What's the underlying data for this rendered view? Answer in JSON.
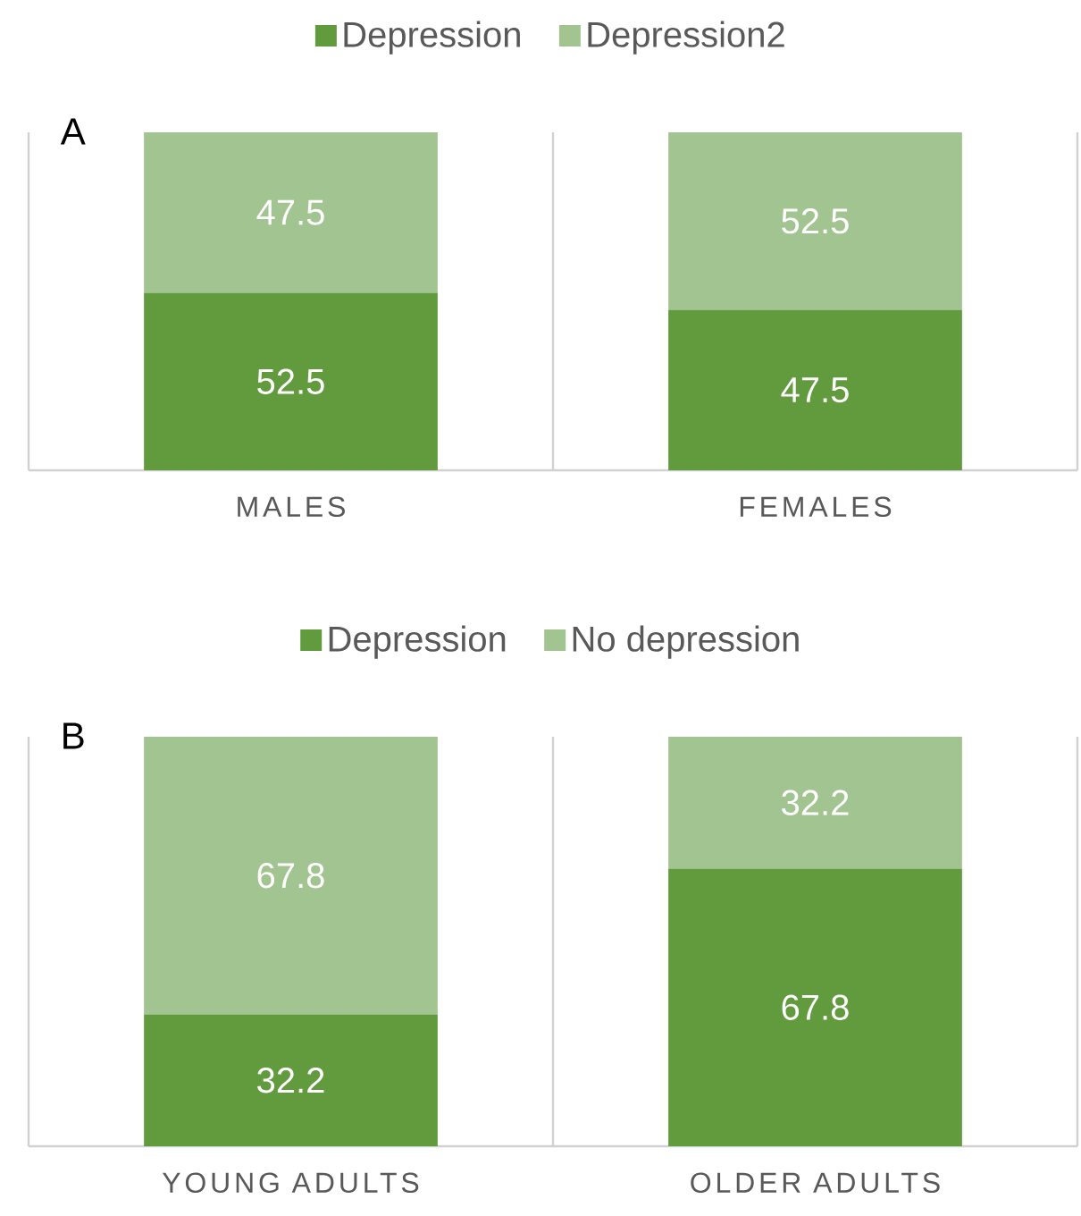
{
  "chart_data": [
    {
      "type": "bar",
      "stacked": true,
      "title": "A",
      "categories": [
        "MALES",
        "FEMALES"
      ],
      "series": [
        {
          "name": "Depression",
          "color": "#629a3e",
          "values": [
            52.5,
            47.5
          ]
        },
        {
          "name": "Depression2",
          "color": "#a2c490",
          "values": [
            47.5,
            52.5
          ]
        }
      ],
      "data_labels": true,
      "legend": "top",
      "tick_labels": "x"
    },
    {
      "type": "bar",
      "stacked": true,
      "title": "B",
      "categories": [
        "YOUNG ADULTS",
        "OLDER ADULTS"
      ],
      "series": [
        {
          "name": "Depression",
          "color": "#629a3e",
          "values": [
            32.2,
            67.8
          ]
        },
        {
          "name": "No depression",
          "color": "#a2c490",
          "values": [
            67.8,
            32.2
          ]
        }
      ],
      "data_labels": true,
      "legend": "top",
      "tick_labels": "x"
    }
  ]
}
